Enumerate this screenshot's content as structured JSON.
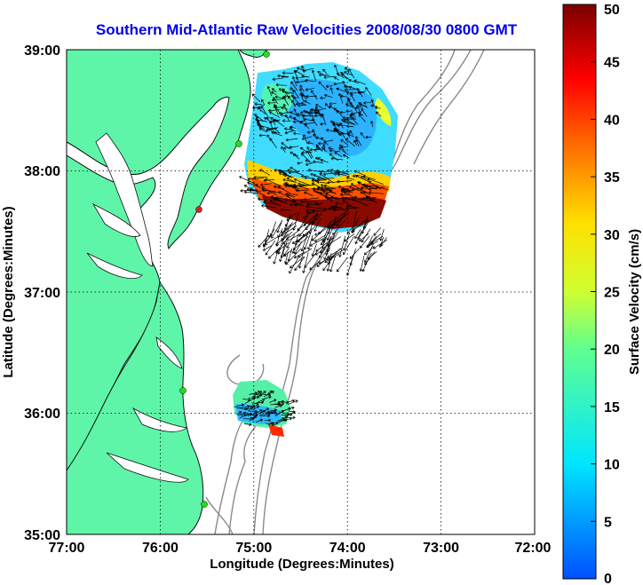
{
  "title": "Southern Mid-Atlantic Raw Velocities 2008/08/30 0800 GMT",
  "x_axis": {
    "label": "Longitude (Degrees:Minutes)",
    "ticks": [
      "77:00",
      "76:00",
      "75:00",
      "74:00",
      "73:00",
      "72:00"
    ]
  },
  "y_axis": {
    "label": "Latitude (Degrees:Minutes)",
    "ticks": [
      "39:00",
      "38:00",
      "37:00",
      "36:00",
      "35:00"
    ]
  },
  "colorbar": {
    "label": "Surface Velocity (cm/s)",
    "ticks": [
      "50",
      "45",
      "40",
      "35",
      "30",
      "25",
      "20",
      "15",
      "10",
      "5",
      "0"
    ],
    "range": [
      0,
      50
    ],
    "colormap": "jet"
  },
  "colors": {
    "title": "#0000ee",
    "land": "#5ff5a8",
    "coast": "#111111",
    "bathymetry": "#8a8a8a",
    "station": "#22dd22",
    "station_alert": "#e02020"
  },
  "map_extent": {
    "lon": [
      -77,
      -72
    ],
    "lat": [
      35,
      39
    ]
  },
  "grid": true,
  "stations": [
    {
      "status": "normal"
    },
    {
      "status": "normal"
    },
    {
      "status": "alert"
    },
    {
      "status": "normal"
    },
    {
      "status": "normal"
    }
  ]
}
